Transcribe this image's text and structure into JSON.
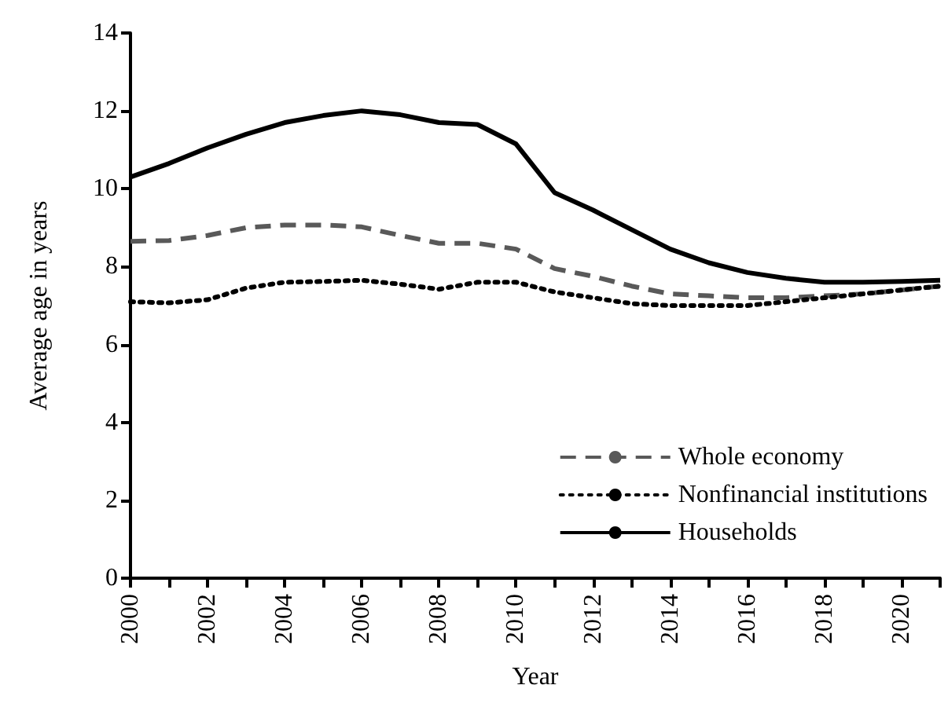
{
  "chart_data": {
    "type": "line",
    "xlabel": "Year",
    "ylabel": "Average age in years",
    "x": [
      2000,
      2001,
      2002,
      2003,
      2004,
      2005,
      2006,
      2007,
      2008,
      2009,
      2010,
      2011,
      2012,
      2013,
      2014,
      2015,
      2016,
      2017,
      2018,
      2019,
      2020,
      2021
    ],
    "series": [
      {
        "name": "Whole economy",
        "color": "#595959",
        "line_style": "dashed",
        "values": [
          8.65,
          8.67,
          8.8,
          9.0,
          9.07,
          9.07,
          9.02,
          8.8,
          8.6,
          8.6,
          8.45,
          7.95,
          7.75,
          7.5,
          7.3,
          7.25,
          7.2,
          7.2,
          7.25,
          7.3,
          7.4,
          7.5
        ]
      },
      {
        "name": "Nonfinancial institutions",
        "color": "#000000",
        "line_style": "dotted",
        "values": [
          7.1,
          7.07,
          7.15,
          7.45,
          7.6,
          7.62,
          7.65,
          7.55,
          7.42,
          7.6,
          7.6,
          7.35,
          7.2,
          7.05,
          7.0,
          7.0,
          7.0,
          7.1,
          7.2,
          7.3,
          7.4,
          7.5
        ]
      },
      {
        "name": "Households",
        "color": "#000000",
        "line_style": "solid",
        "values": [
          10.3,
          10.65,
          11.05,
          11.4,
          11.7,
          11.88,
          12.0,
          11.9,
          11.7,
          11.65,
          11.15,
          9.9,
          9.45,
          8.95,
          8.45,
          8.1,
          7.85,
          7.7,
          7.6,
          7.6,
          7.62,
          7.65
        ]
      }
    ],
    "xlim": [
      2000,
      2021
    ],
    "xticks": [
      2000,
      {
        "value": 2001,
        "label": null
      },
      2002,
      {
        "value": 2003,
        "label": null
      },
      2004,
      {
        "value": 2005,
        "label": null
      },
      2006,
      {
        "value": 2007,
        "label": null
      },
      2008,
      {
        "value": 2009,
        "label": null
      },
      2010,
      {
        "value": 2011,
        "label": null
      },
      2012,
      {
        "value": 2013,
        "label": null
      },
      2014,
      {
        "value": 2015,
        "label": null
      },
      2016,
      {
        "value": 2017,
        "label": null
      },
      2018,
      {
        "value": 2019,
        "label": null
      },
      2020,
      {
        "value": 2021,
        "label": null
      }
    ],
    "ylim": [
      0,
      14
    ],
    "yticks": [
      0,
      2,
      4,
      6,
      8,
      10,
      12,
      14
    ],
    "grid": false,
    "legend": "bottom right",
    "marker": "none"
  }
}
